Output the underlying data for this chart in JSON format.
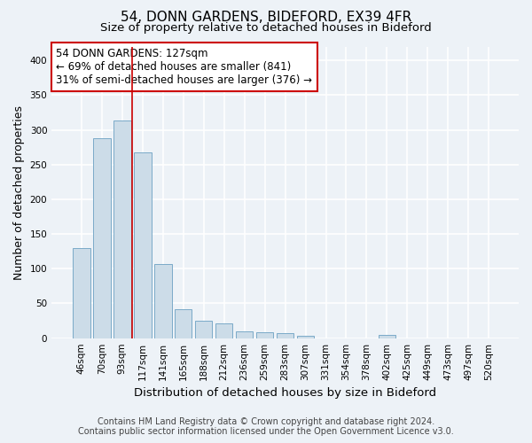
{
  "title_line1": "54, DONN GARDENS, BIDEFORD, EX39 4FR",
  "title_line2": "Size of property relative to detached houses in Bideford",
  "xlabel": "Distribution of detached houses by size in Bideford",
  "ylabel": "Number of detached properties",
  "footer_line1": "Contains HM Land Registry data © Crown copyright and database right 2024.",
  "footer_line2": "Contains public sector information licensed under the Open Government Licence v3.0.",
  "categories": [
    "46sqm",
    "70sqm",
    "93sqm",
    "117sqm",
    "141sqm",
    "165sqm",
    "188sqm",
    "212sqm",
    "236sqm",
    "259sqm",
    "283sqm",
    "307sqm",
    "331sqm",
    "354sqm",
    "378sqm",
    "402sqm",
    "425sqm",
    "449sqm",
    "473sqm",
    "497sqm",
    "520sqm"
  ],
  "values": [
    130,
    288,
    313,
    268,
    107,
    42,
    25,
    21,
    10,
    9,
    7,
    4,
    0,
    0,
    0,
    5,
    0,
    0,
    0,
    0,
    0
  ],
  "bar_color": "#ccdce8",
  "bar_edge_color": "#7aaac8",
  "annotation_text_line1": "54 DONN GARDENS: 127sqm",
  "annotation_text_line2": "← 69% of detached houses are smaller (841)",
  "annotation_text_line3": "31% of semi-detached houses are larger (376) →",
  "vline_color": "#cc0000",
  "vline_x": 2.5,
  "ylim_max": 420,
  "background_color": "#edf2f7",
  "plot_bg_color": "#edf2f7",
  "grid_color": "#ffffff",
  "annotation_box_facecolor": "#ffffff",
  "annotation_box_edgecolor": "#cc0000",
  "title_fontsize": 11,
  "subtitle_fontsize": 9.5,
  "annotation_fontsize": 8.5,
  "ylabel_fontsize": 9,
  "xlabel_fontsize": 9.5,
  "tick_labelsize": 7.5,
  "footer_fontsize": 7
}
